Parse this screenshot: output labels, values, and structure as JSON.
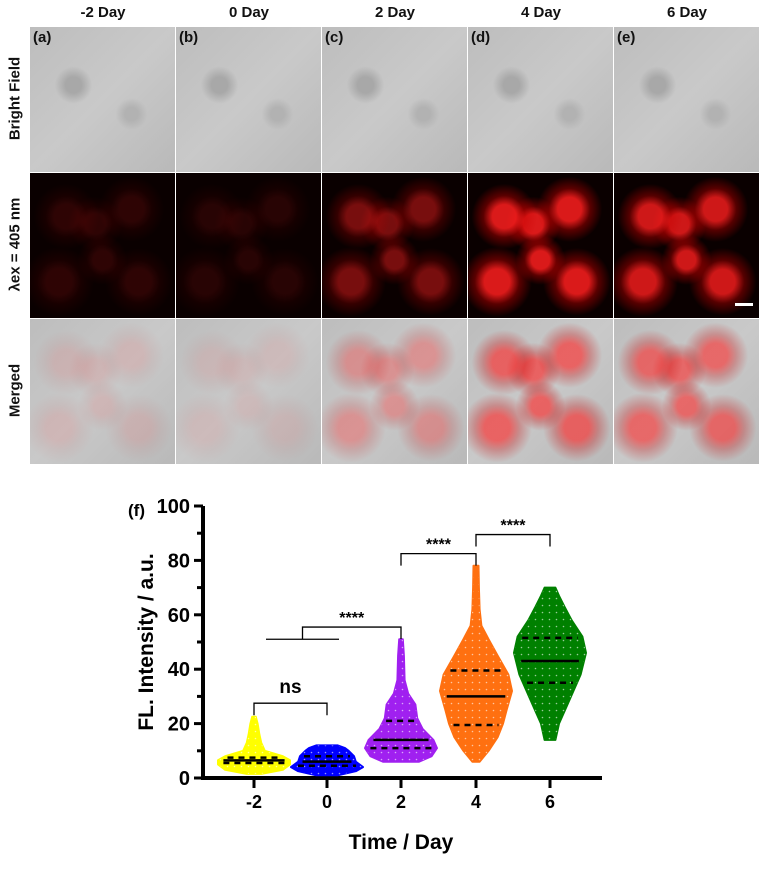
{
  "figure": {
    "columns": [
      "-2 Day",
      "0 Day",
      "2 Day",
      "4 Day",
      "6 Day"
    ],
    "panel_labels": [
      "(a)",
      "(b)",
      "(c)",
      "(d)",
      "(e)"
    ],
    "rows": [
      "Bright Field",
      "λex = 405 nm",
      "Merged"
    ],
    "fluorescence_intensity_by_column": [
      0.15,
      0.12,
      0.45,
      0.85,
      0.8
    ],
    "chart_panel_label": "(f)"
  },
  "chart_data": {
    "type": "violin",
    "xlabel": "Time / Day",
    "ylabel": "FL. Intensity / a.u.",
    "ylim": [
      0,
      100
    ],
    "yticks": [
      0,
      20,
      40,
      60,
      80,
      100
    ],
    "categories": [
      "-2",
      "0",
      "2",
      "4",
      "6"
    ],
    "series": [
      {
        "name": "-2",
        "color": "#ffff00",
        "min": 1.5,
        "max": 22.5,
        "median": 6.5,
        "q1": 5.5,
        "q3": 7.5,
        "profile": [
          [
            1.5,
            0.2
          ],
          [
            3,
            0.8
          ],
          [
            5,
            1.0
          ],
          [
            6.5,
            1.0
          ],
          [
            8,
            0.8
          ],
          [
            10,
            0.3
          ],
          [
            13,
            0.2
          ],
          [
            16,
            0.15
          ],
          [
            20,
            0.1
          ],
          [
            22.5,
            0.05
          ]
        ]
      },
      {
        "name": "0",
        "color": "#0000ff",
        "min": 1,
        "max": 12,
        "median": 6,
        "q1": 4.5,
        "q3": 8,
        "profile": [
          [
            1,
            0.3
          ],
          [
            2.5,
            0.8
          ],
          [
            4,
            1.0
          ],
          [
            6,
            0.8
          ],
          [
            8,
            0.75
          ],
          [
            10,
            0.6
          ],
          [
            11,
            0.5
          ],
          [
            12,
            0.3
          ]
        ]
      },
      {
        "name": "2",
        "color": "#a020f0",
        "min": 6,
        "max": 51,
        "median": 14,
        "q1": 11,
        "q3": 21,
        "profile": [
          [
            6,
            0.5
          ],
          [
            8,
            0.85
          ],
          [
            11,
            1.0
          ],
          [
            14,
            0.9
          ],
          [
            18,
            0.6
          ],
          [
            22,
            0.45
          ],
          [
            27,
            0.4
          ],
          [
            31,
            0.2
          ],
          [
            36,
            0.1
          ],
          [
            45,
            0.08
          ],
          [
            51,
            0.05
          ]
        ]
      },
      {
        "name": "4",
        "color": "#ff7010",
        "min": 6,
        "max": 78,
        "median": 30,
        "q1": 19.5,
        "q3": 39.5,
        "profile": [
          [
            6,
            0.1
          ],
          [
            10,
            0.35
          ],
          [
            15,
            0.6
          ],
          [
            20,
            0.75
          ],
          [
            25,
            0.85
          ],
          [
            32,
            1.0
          ],
          [
            38,
            0.9
          ],
          [
            45,
            0.6
          ],
          [
            51,
            0.35
          ],
          [
            56,
            0.15
          ],
          [
            62,
            0.1
          ],
          [
            70,
            0.08
          ],
          [
            78,
            0.07
          ]
        ]
      },
      {
        "name": "6",
        "color": "#008000",
        "min": 14,
        "max": 70,
        "median": 43,
        "q1": 35,
        "q3": 51.5,
        "profile": [
          [
            14,
            0.15
          ],
          [
            20,
            0.25
          ],
          [
            26,
            0.45
          ],
          [
            32,
            0.65
          ],
          [
            38,
            0.85
          ],
          [
            46,
            1.0
          ],
          [
            52,
            0.9
          ],
          [
            58,
            0.6
          ],
          [
            63,
            0.4
          ],
          [
            67,
            0.25
          ],
          [
            70,
            0.15
          ]
        ]
      }
    ],
    "significance": [
      {
        "label": "ns",
        "from": "-2",
        "to": "0",
        "y": 27.5
      },
      {
        "label": "****",
        "from": "-2..0",
        "to": "2",
        "y": 55.5
      },
      {
        "label": "****",
        "from": "2",
        "to": "4",
        "y": 82.5
      },
      {
        "label": "****",
        "from": "4",
        "to": "6",
        "y": 89.5
      }
    ]
  }
}
